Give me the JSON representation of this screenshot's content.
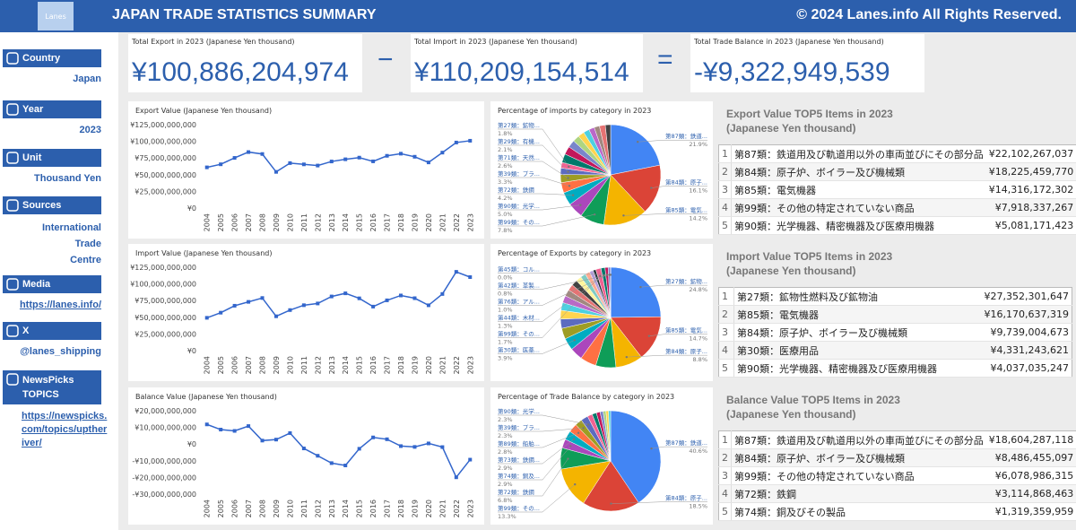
{
  "header": {
    "logo": "Lanes",
    "title": "JAPAN TRADE STATISTICS SUMMARY",
    "copyright": "© 2024 Lanes.info All Rights Reserved."
  },
  "sidebar": [
    {
      "label": "Country",
      "value": "Japan"
    },
    {
      "label": "Year",
      "value": "2023"
    },
    {
      "label": "Unit",
      "value": "Thousand Yen"
    },
    {
      "label": "Sources",
      "value": [
        "International",
        "Trade",
        "Centre"
      ]
    },
    {
      "label": "Media",
      "value": "https://lanes.info/"
    },
    {
      "label": "X",
      "value": "@lanes_shipping"
    },
    {
      "label": "NewsPicks TOPICS",
      "value": "https://newspicks.com/topics/uptheriver/"
    }
  ],
  "kpis": [
    {
      "label": "Total Export in 2023 (Japanese Yen thousand)",
      "value": "¥100,886,204,974"
    },
    {
      "label": "Total Import in 2023 (Japanese Yen thousand)",
      "value": "¥110,209,154,514"
    },
    {
      "label": "Total Trade Balance in 2023 (Japanese Yen thousand)",
      "value": "-¥9,322,949,539"
    }
  ],
  "operators": [
    "−",
    "="
  ],
  "chart_data": [
    {
      "type": "line",
      "title": "Export Value (Japanese Yen thousand)",
      "color": "#3366cc",
      "grid": false,
      "categories": [
        "2004",
        "2005",
        "2006",
        "2007",
        "2008",
        "2009",
        "2010",
        "2011",
        "2012",
        "2013",
        "2014",
        "2015",
        "2016",
        "2017",
        "2018",
        "2019",
        "2020",
        "2021",
        "2022",
        "2023"
      ],
      "values": [
        61000000000,
        65600000000,
        75200000000,
        83900000000,
        81000000000,
        54200000000,
        67400000000,
        65500000000,
        63700000000,
        69800000000,
        73100000000,
        75600000000,
        70000000000,
        78300000000,
        81500000000,
        76900000000,
        68400000000,
        83100000000,
        98200000000,
        100886204974
      ],
      "ylim": [
        0,
        125000000000
      ],
      "yticks": [
        {
          "value": 0,
          "label": "¥0"
        },
        {
          "value": 25000000000,
          "label": "¥25,000,000,000"
        },
        {
          "value": 50000000000,
          "label": "¥50,000,000,000"
        },
        {
          "value": 75000000000,
          "label": "¥75,000,000,000"
        },
        {
          "value": 100000000000,
          "label": "¥100,000,000,000"
        },
        {
          "value": 125000000000,
          "label": "¥125,000,000,000"
        }
      ]
    },
    {
      "type": "pie",
      "title": "Percentage of imports by category in 2023",
      "categories": [
        "第87類：鉄道...",
        "第84類：原子...",
        "第85類：電気...",
        "第99類：その...",
        "第90類：光学...",
        "第72類：鉄鋼",
        "第39類：プラ...",
        "第71類：天然...",
        "第29類：有機...",
        "第27類：鉱物...",
        null,
        null,
        null,
        null,
        null,
        null,
        null,
        null,
        null,
        null
      ],
      "values": [
        21.9,
        16.1,
        14.2,
        7.8,
        5.0,
        4.2,
        3.3,
        2.6,
        2.1,
        1.8,
        2.8,
        2.6,
        2.4,
        2.2,
        2.0,
        1.9,
        1.8,
        1.7,
        1.9,
        1.7
      ],
      "value_labels": [
        "21.9%",
        "16.1%",
        "14.2%",
        "7.8%",
        "5.0%",
        "4.2%",
        "3.3%",
        "2.6%",
        "2.1%",
        "1.8%",
        null,
        null,
        null,
        null,
        null,
        null,
        null,
        null,
        null,
        null
      ],
      "colors": [
        "#4285f4",
        "#db4437",
        "#f4b400",
        "#0f9d58",
        "#ab47bc",
        "#00acc1",
        "#ff7043",
        "#9e9d24",
        "#5c6bc0",
        "#f06292",
        "#00796b",
        "#c2185b",
        "#7986cb",
        "#aed581",
        "#ffd54f",
        "#4dd0e1",
        "#ba68c8",
        "#a1887f",
        "#e57373",
        "#424242"
      ]
    },
    {
      "type": "line",
      "title": "Import Value (Japanese Yen thousand)",
      "color": "#3366cc",
      "grid": false,
      "categories": [
        "2004",
        "2005",
        "2006",
        "2007",
        "2008",
        "2009",
        "2010",
        "2011",
        "2012",
        "2013",
        "2014",
        "2015",
        "2016",
        "2017",
        "2018",
        "2019",
        "2020",
        "2021",
        "2022",
        "2023"
      ],
      "values": [
        49200000000,
        56900000000,
        67300000000,
        73100000000,
        78900000000,
        51500000000,
        60800000000,
        68100000000,
        70700000000,
        81200000000,
        85900000000,
        78400000000,
        66000000000,
        75400000000,
        82700000000,
        78600000000,
        68000000000,
        84900000000,
        118100000000,
        110209154514
      ],
      "ylim": [
        0,
        125000000000
      ],
      "yticks": [
        {
          "value": 0,
          "label": "¥0"
        },
        {
          "value": 25000000000,
          "label": "¥25,000,000,000"
        },
        {
          "value": 50000000000,
          "label": "¥50,000,000,000"
        },
        {
          "value": 75000000000,
          "label": "¥75,000,000,000"
        },
        {
          "value": 100000000000,
          "label": "¥100,000,000,000"
        },
        {
          "value": 125000000000,
          "label": "¥125,000,000,000"
        }
      ]
    },
    {
      "type": "pie",
      "title": "Percentage of Exports by category in 2023",
      "categories": [
        "第27類：鉱物...",
        "第85類：電気...",
        "第84類：原子...",
        null,
        null,
        null,
        "第30類：医薬...",
        null,
        null,
        null,
        null,
        null,
        null,
        null,
        null,
        null,
        null,
        null,
        null,
        null,
        "第99類：その...",
        "第44類：木材...",
        "第76類：アル...",
        "第42類：革製...",
        "第45類：コル..."
      ],
      "values": [
        24.8,
        14.7,
        8.8,
        6.5,
        5.2,
        4.1,
        3.9,
        3.5,
        3.0,
        2.8,
        2.5,
        2.3,
        2.1,
        2.0,
        1.9,
        1.8,
        1.7,
        1.5,
        1.2,
        0.9,
        1.7,
        1.3,
        1.0,
        0.8,
        0.0
      ],
      "value_labels": [
        "24.8%",
        "14.7%",
        "8.8%",
        null,
        null,
        null,
        "3.9%",
        null,
        null,
        null,
        null,
        null,
        null,
        null,
        null,
        null,
        null,
        null,
        null,
        null,
        "1.7%",
        "1.3%",
        "1.0%",
        "0.8%",
        "0.0%"
      ],
      "colors": [
        "#4285f4",
        "#db4437",
        "#f4b400",
        "#0f9d58",
        "#ff7043",
        "#ab47bc",
        "#00acc1",
        "#9e9d24",
        "#5c6bc0",
        "#ffd54f",
        "#4dd0e1",
        "#ba68c8",
        "#a1887f",
        "#e57373",
        "#424242",
        "#fff59d",
        "#80cbc4",
        "#ffab91",
        "#b39ddb",
        "#263238",
        "#f06292",
        "#00796b",
        "#c2185b",
        "#7986cb",
        "#aed581"
      ]
    },
    {
      "type": "line",
      "title": "Balance Value (Japanese Yen thousand)",
      "color": "#3366cc",
      "grid": false,
      "categories": [
        "2004",
        "2005",
        "2006",
        "2007",
        "2008",
        "2009",
        "2010",
        "2011",
        "2012",
        "2013",
        "2014",
        "2015",
        "2016",
        "2017",
        "2018",
        "2019",
        "2020",
        "2021",
        "2022",
        "2023"
      ],
      "values": [
        11800000000,
        8700000000,
        7900000000,
        10800000000,
        2100000000,
        2700000000,
        6600000000,
        -2600000000,
        -7000000000,
        -11400000000,
        -12800000000,
        -2800000000,
        4000000000,
        2900000000,
        -1200000000,
        -1700000000,
        400000000,
        -1800000000,
        -19900000000,
        -9322949539
      ],
      "ylim": [
        -30000000000,
        20000000000
      ],
      "yticks": [
        {
          "value": -30000000000,
          "label": "-¥30,000,000,000"
        },
        {
          "value": -20000000000,
          "label": "-¥20,000,000,000"
        },
        {
          "value": -10000000000,
          "label": "-¥10,000,000,000"
        },
        {
          "value": 0,
          "label": "¥0"
        },
        {
          "value": 10000000000,
          "label": "¥10,000,000,000"
        },
        {
          "value": 20000000000,
          "label": "¥20,000,000,000"
        }
      ]
    },
    {
      "type": "pie",
      "title": "Percentage of Trade Balance by category in 2023",
      "categories": [
        "第87類：鉄道...",
        "第84類：原子...",
        "第99類：その...",
        "第72類：鉄鋼",
        "第74類：銅及...",
        "第73類：鉄鋼...",
        "第89類：船舶...",
        "第39類：プラ...",
        "第90類：光学...",
        null,
        null,
        null,
        null,
        null,
        null,
        null
      ],
      "values": [
        40.6,
        18.5,
        13.3,
        6.8,
        2.9,
        2.9,
        2.8,
        2.3,
        2.3,
        1.6,
        1.4,
        1.2,
        1.0,
        0.9,
        0.8,
        0.7
      ],
      "value_labels": [
        "40.6%",
        "18.5%",
        "13.3%",
        "6.8%",
        "2.9%",
        "2.9%",
        "2.8%",
        "2.3%",
        "2.3%",
        null,
        null,
        null,
        null,
        null,
        null,
        null
      ],
      "colors": [
        "#4285f4",
        "#db4437",
        "#f4b400",
        "#0f9d58",
        "#ab47bc",
        "#00acc1",
        "#ff7043",
        "#9e9d24",
        "#5c6bc0",
        "#f06292",
        "#00796b",
        "#c2185b",
        "#7986cb",
        "#aed581",
        "#ffd54f",
        "#4dd0e1"
      ]
    }
  ],
  "tables": [
    {
      "title": "Export Value TOP5 Items in 2023",
      "subtitle": "(Japanese Yen thousand)",
      "rows": [
        [
          "1",
          "第87類：鉄道用及び軌道用以外の車両並びにその部分品",
          "¥22,102,267,037"
        ],
        [
          "2",
          "第84類：原子炉、ボイラー及び機械類",
          "¥18,225,459,770"
        ],
        [
          "3",
          "第85類：電気機器",
          "¥14,316,172,302"
        ],
        [
          "4",
          "第99類：その他の特定されていない商品",
          "¥7,918,337,267"
        ],
        [
          "5",
          "第90類：光学機器、精密機器及び医療用機器",
          "¥5,081,171,423"
        ]
      ]
    },
    {
      "title": "Import Value TOP5 Items in 2023",
      "subtitle": "(Japanese Yen thousand)",
      "rows": [
        [
          "1",
          "第27類：鉱物性燃料及び鉱物油",
          "¥27,352,301,647"
        ],
        [
          "2",
          "第85類：電気機器",
          "¥16,170,637,319"
        ],
        [
          "3",
          "第84類：原子炉、ボイラー及び機械類",
          "¥9,739,004,673"
        ],
        [
          "4",
          "第30類：医療用品",
          "¥4,331,243,621"
        ],
        [
          "5",
          "第90類：光学機器、精密機器及び医療用機器",
          "¥4,037,035,247"
        ]
      ]
    },
    {
      "title": "Balance Value TOP5 Items in 2023",
      "subtitle": "(Japanese Yen thousand)",
      "rows": [
        [
          "1",
          "第87類：鉄道用及び軌道用以外の車両並びにその部分品",
          "¥18,604,287,118"
        ],
        [
          "2",
          "第84類：原子炉、ボイラー及び機械類",
          "¥8,486,455,097"
        ],
        [
          "3",
          "第99類：その他の特定されていない商品",
          "¥6,078,986,315"
        ],
        [
          "4",
          "第72類：鉄鋼",
          "¥3,114,868,463"
        ],
        [
          "5",
          "第74類：銅及びその製品",
          "¥1,319,359,959"
        ]
      ]
    }
  ]
}
